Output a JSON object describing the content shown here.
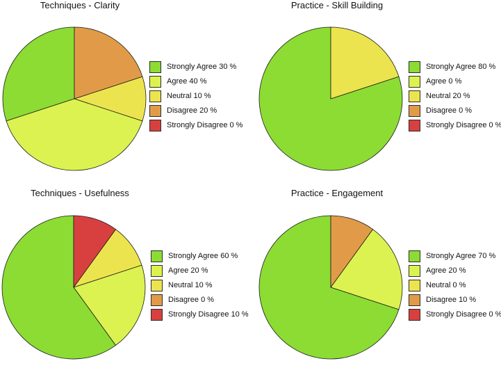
{
  "colors": {
    "strongly_agree": "#8cdc34",
    "agree": "#dcf250",
    "neutral": "#ece44e",
    "disagree": "#e19b48",
    "strongly_disagree": "#d84040"
  },
  "chart_data": [
    {
      "type": "pie",
      "title": "Techniques - Clarity",
      "labels": [
        "Strongly Agree 30 %",
        "Agree 40 %",
        "Neutral 10 %",
        "Disagree 20 %",
        "Strongly Disagree 0 %"
      ],
      "categories": [
        "Strongly Agree",
        "Agree",
        "Neutral",
        "Disagree",
        "Strongly Disagree"
      ],
      "values": [
        30,
        40,
        10,
        20,
        0
      ],
      "legend": "right"
    },
    {
      "type": "pie",
      "title": "Practice - Skill Building",
      "labels": [
        "Strongly Agree 80 %",
        "Agree 0 %",
        "Neutral 20 %",
        "Disagree 0 %",
        "Strongly Disagree 0 %"
      ],
      "categories": [
        "Strongly Agree",
        "Agree",
        "Neutral",
        "Disagree",
        "Strongly Disagree"
      ],
      "values": [
        80,
        0,
        20,
        0,
        0
      ],
      "legend": "right"
    },
    {
      "type": "pie",
      "title": "Techniques - Usefulness",
      "labels": [
        "Strongly Agree 60 %",
        "Agree 20 %",
        "Neutral 10 %",
        "Disagree 0 %",
        "Strongly Disagree 10 %"
      ],
      "categories": [
        "Strongly Agree",
        "Agree",
        "Neutral",
        "Disagree",
        "Strongly Disagree"
      ],
      "values": [
        60,
        20,
        10,
        0,
        10
      ],
      "legend": "right"
    },
    {
      "type": "pie",
      "title": "Practice - Engagement",
      "labels": [
        "Strongly Agree 70 %",
        "Agree 20 %",
        "Neutral 0 %",
        "Disagree 10 %",
        "Strongly Disagree 0 %"
      ],
      "categories": [
        "Strongly Agree",
        "Agree",
        "Neutral",
        "Disagree",
        "Strongly Disagree"
      ],
      "values": [
        70,
        20,
        0,
        10,
        0
      ],
      "legend": "right"
    }
  ]
}
